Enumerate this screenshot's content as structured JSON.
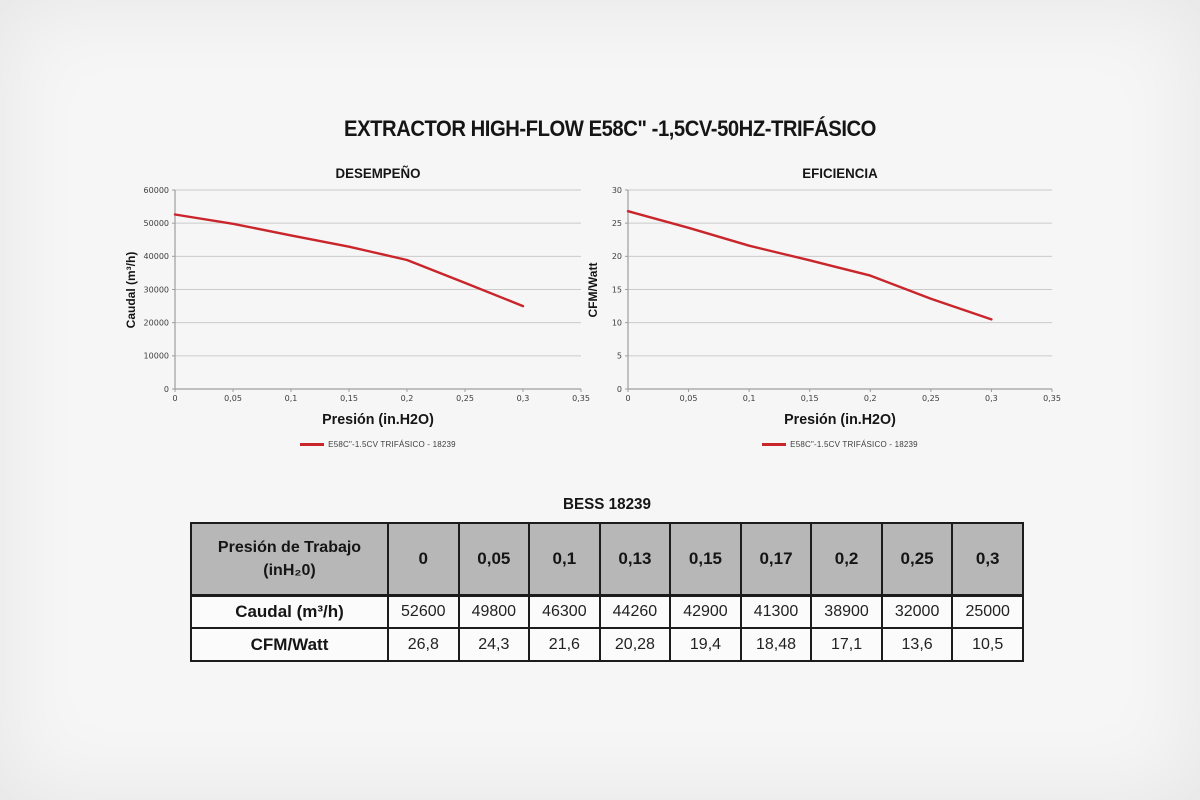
{
  "page_title": "EXTRACTOR HIGH-FLOW E58C\" -1,5CV-50HZ-TRIFÁSICO",
  "colors": {
    "line": "#c9252b",
    "grid": "#cbcbcb",
    "axis": "#9e9e9e",
    "table_header_bg": "#b7b7b7",
    "table_border": "#1c1c1c",
    "text": "#151515"
  },
  "chart_data": [
    {
      "type": "line",
      "title": "DESEMPEÑO",
      "xlabel": "Presión (in.H2O)",
      "ylabel": "Caudal  (m³/h)",
      "x": [
        0,
        0.05,
        0.1,
        0.13,
        0.15,
        0.17,
        0.2,
        0.25,
        0.3
      ],
      "series": [
        {
          "name": "E58C\"-1.5CV TRIFÁSICO - 18239",
          "values": [
            52600,
            49800,
            46300,
            44260,
            42900,
            41300,
            38900,
            32000,
            25000
          ]
        }
      ],
      "xlim": [
        0,
        0.35
      ],
      "ylim": [
        0,
        60000
      ],
      "xtick_vals": [
        0,
        0.05,
        0.1,
        0.15,
        0.2,
        0.25,
        0.3,
        0.35
      ],
      "xtick_labels": [
        "0",
        "0,05",
        "0,1",
        "0,15",
        "0,2",
        "0,25",
        "0,3",
        "0,35"
      ],
      "ytick_vals": [
        0,
        10000,
        20000,
        30000,
        40000,
        50000,
        60000
      ],
      "ytick_labels": [
        "0",
        "10000",
        "20000",
        "30000",
        "40000",
        "50000",
        "60000"
      ],
      "grid": true,
      "legend_position": "bottom",
      "line_color": "#c9252b"
    },
    {
      "type": "line",
      "title": "EFICIENCIA",
      "xlabel": "Presión (in.H2O)",
      "ylabel": "CFM/Watt",
      "x": [
        0,
        0.05,
        0.1,
        0.13,
        0.15,
        0.17,
        0.2,
        0.25,
        0.3
      ],
      "series": [
        {
          "name": "E58C\"-1.5CV TRIFÁSICO - 18239",
          "values": [
            26.8,
            24.3,
            21.6,
            20.28,
            19.4,
            18.48,
            17.1,
            13.6,
            10.5
          ]
        }
      ],
      "xlim": [
        0,
        0.35
      ],
      "ylim": [
        0,
        30
      ],
      "xtick_vals": [
        0,
        0.05,
        0.1,
        0.15,
        0.2,
        0.25,
        0.3,
        0.35
      ],
      "xtick_labels": [
        "0",
        "0,05",
        "0,1",
        "0,15",
        "0,2",
        "0,25",
        "0,3",
        "0,35"
      ],
      "ytick_vals": [
        0,
        5,
        10,
        15,
        20,
        25,
        30
      ],
      "ytick_labels": [
        "0",
        "5",
        "10",
        "15",
        "20",
        "25",
        "30"
      ],
      "grid": true,
      "legend_position": "bottom",
      "line_color": "#c9252b"
    }
  ],
  "table": {
    "title": "BESS 18239",
    "header_col": "Presión de Trabajo\n(inH₂0)",
    "columns": [
      "0",
      "0,05",
      "0,1",
      "0,13",
      "0,15",
      "0,17",
      "0,2",
      "0,25",
      "0,3"
    ],
    "rows": [
      {
        "label": "Caudal  (m³/h)",
        "values": [
          "52600",
          "49800",
          "46300",
          "44260",
          "42900",
          "41300",
          "38900",
          "32000",
          "25000"
        ]
      },
      {
        "label": "CFM/Watt",
        "values": [
          "26,8",
          "24,3",
          "21,6",
          "20,28",
          "19,4",
          "18,48",
          "17,1",
          "13,6",
          "10,5"
        ]
      }
    ]
  }
}
